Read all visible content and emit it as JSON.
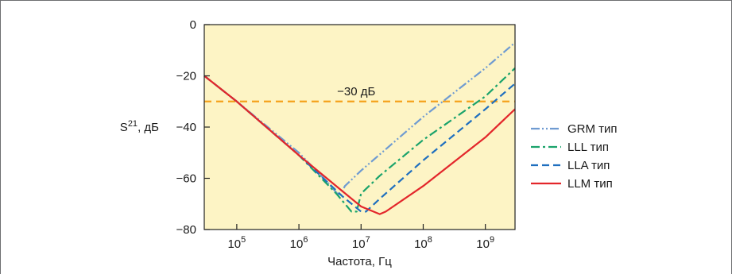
{
  "chart_data": {
    "type": "line",
    "x_scale": "log",
    "xlabel": "Частота, Гц",
    "ylabel": "S21, дБ",
    "ylabel_main": "S",
    "ylabel_sup": "21",
    "ylabel_unit": ", дБ",
    "xlim": [
      30000,
      3000000000
    ],
    "ylim": [
      -80,
      0
    ],
    "x_ticks": [
      {
        "value": 100000,
        "base": "10",
        "exp": "5"
      },
      {
        "value": 1000000,
        "base": "10",
        "exp": "6"
      },
      {
        "value": 10000000,
        "base": "10",
        "exp": "7"
      },
      {
        "value": 100000000,
        "base": "10",
        "exp": "8"
      },
      {
        "value": 1000000000,
        "base": "10",
        "exp": "9"
      }
    ],
    "y_ticks": [
      0,
      -20,
      -40,
      -60,
      -80
    ],
    "y_tick_labels": [
      "0",
      "−20",
      "−40",
      "−60",
      "−80"
    ],
    "grid": false,
    "background_color": "#fdf4c5",
    "legend_position": "right",
    "reference_line": {
      "y": -30,
      "label": "−30 дБ",
      "color": "#f5a21c"
    },
    "series": [
      {
        "name": "GRM тип",
        "color": "#6f9bd1",
        "dash": "dash-dot-dot",
        "points": [
          [
            30000,
            -20
          ],
          [
            100000,
            -30
          ],
          [
            1000000,
            -50
          ],
          [
            3000000,
            -62
          ],
          [
            4500000,
            -67
          ],
          [
            5500000,
            -63
          ],
          [
            10000000,
            -57
          ],
          [
            100000000,
            -36
          ],
          [
            1000000000,
            -17
          ],
          [
            3000000000,
            -7
          ]
        ]
      },
      {
        "name": "LLL тип",
        "color": "#1aa36b",
        "dash": "dash-dot",
        "points": [
          [
            30000,
            -20
          ],
          [
            100000,
            -30
          ],
          [
            1000000,
            -51
          ],
          [
            4000000,
            -66
          ],
          [
            7000000,
            -73
          ],
          [
            8500000,
            -73
          ],
          [
            10000000,
            -66
          ],
          [
            20000000,
            -59
          ],
          [
            100000000,
            -45
          ],
          [
            1000000000,
            -28
          ],
          [
            3000000000,
            -17
          ]
        ]
      },
      {
        "name": "LLA тип",
        "color": "#1f6fbf",
        "dash": "dash",
        "points": [
          [
            30000,
            -20
          ],
          [
            100000,
            -30
          ],
          [
            1000000,
            -51
          ],
          [
            5000000,
            -67
          ],
          [
            10000000,
            -73
          ],
          [
            12000000,
            -73
          ],
          [
            20000000,
            -68
          ],
          [
            100000000,
            -53
          ],
          [
            1000000000,
            -33
          ],
          [
            3000000000,
            -23
          ]
        ]
      },
      {
        "name": "LLM тип",
        "color": "#e3262b",
        "dash": "solid",
        "points": [
          [
            30000,
            -20
          ],
          [
            100000,
            -30
          ],
          [
            1000000,
            -51
          ],
          [
            5000000,
            -65
          ],
          [
            10000000,
            -71
          ],
          [
            20000000,
            -74
          ],
          [
            25000000,
            -73
          ],
          [
            100000000,
            -63
          ],
          [
            1000000000,
            -44
          ],
          [
            3000000000,
            -33
          ]
        ]
      }
    ]
  }
}
